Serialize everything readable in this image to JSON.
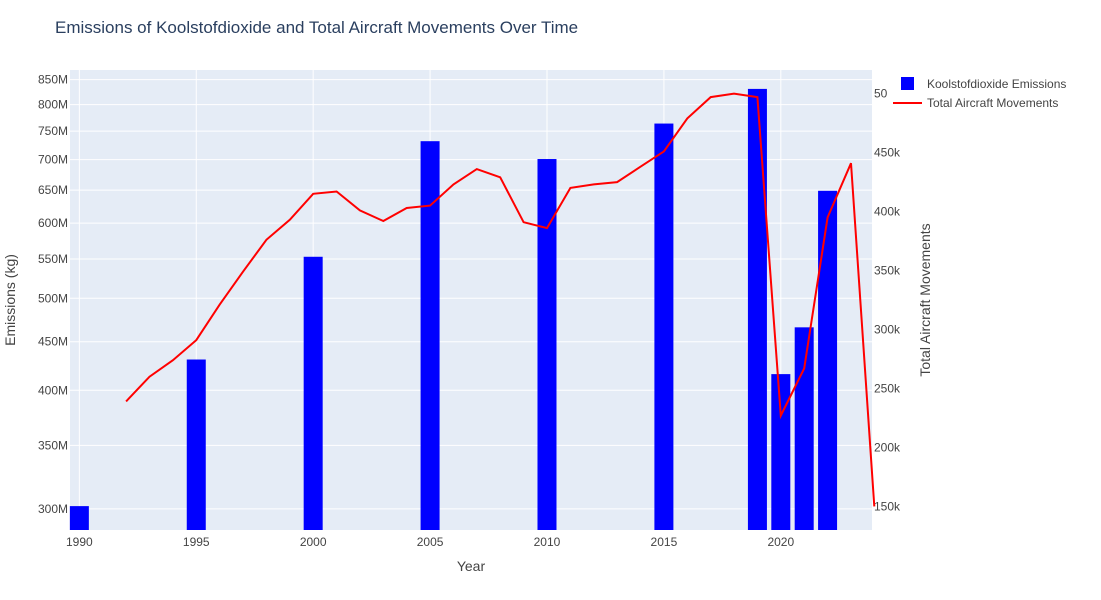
{
  "chart_data": {
    "type": "bar+line",
    "title": "Emissions of Koolstofdioxide and Total Aircraft Movements Over Time",
    "xlabel": "Year",
    "ylabel": "Emissions (kg)",
    "y2label": "Total Aircraft Movements",
    "x_ticks": [
      "1990",
      "1995",
      "2000",
      "2005",
      "2010",
      "2015",
      "2020"
    ],
    "y_ticks": [
      "300M",
      "350M",
      "400M",
      "450M",
      "500M",
      "550M",
      "600M",
      "650M",
      "700M",
      "750M",
      "800M",
      "850M"
    ],
    "y2_ticks": [
      "150k",
      "200k",
      "250k",
      "300k",
      "350k",
      "400k",
      "450k",
      "50"
    ],
    "xlim": [
      1989.6,
      2023.9
    ],
    "ylog": true,
    "ylim": [
      285000000,
      870000000
    ],
    "y2lim": [
      130000,
      520000
    ],
    "grid": true,
    "legend_position": "top-right",
    "series": [
      {
        "name": "Koolstofdioxide Emissions",
        "type": "bar",
        "color": "#0000ff",
        "x": [
          1990,
          1995,
          2000,
          2005,
          2010,
          2015,
          2019,
          2020,
          2021,
          2022
        ],
        "values": [
          302000000,
          431000000,
          553000000,
          732000000,
          701000000,
          764000000,
          831000000,
          416000000,
          466000000,
          649000000
        ]
      },
      {
        "name": "Total Aircraft Movements",
        "type": "line",
        "color": "#ff0000",
        "axis": "y2",
        "x": [
          1992,
          1993,
          1994,
          1995,
          1996,
          1997,
          1998,
          1999,
          2000,
          2001,
          2002,
          2003,
          2004,
          2005,
          2006,
          2007,
          2008,
          2009,
          2010,
          2011,
          2012,
          2013,
          2014,
          2015,
          2016,
          2017,
          2018,
          2019,
          2020,
          2021,
          2022,
          2023,
          2024
        ],
        "values": [
          239000,
          260000,
          274000,
          291000,
          321000,
          349000,
          376000,
          393000,
          415000,
          417000,
          401000,
          392000,
          403000,
          405000,
          423000,
          436000,
          429000,
          391000,
          386000,
          420000,
          423000,
          425000,
          438000,
          451000,
          479000,
          497000,
          500000,
          497000,
          227000,
          267000,
          395000,
          441000,
          150000
        ]
      }
    ]
  }
}
